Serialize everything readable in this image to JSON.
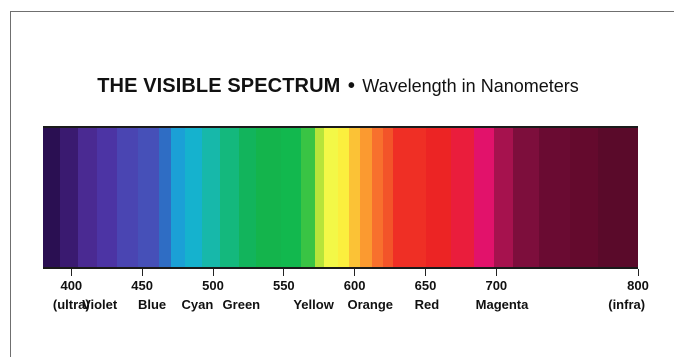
{
  "title": {
    "main": "THE VISIBLE SPECTRUM",
    "separator": "•",
    "subtitle": "Wavelength in Nanometers"
  },
  "scale": {
    "min": 380,
    "max": 800,
    "ticks": [
      {
        "value": 400,
        "label": "400"
      },
      {
        "value": 450,
        "label": "450"
      },
      {
        "value": 500,
        "label": "500"
      },
      {
        "value": 550,
        "label": "550"
      },
      {
        "value": 600,
        "label": "600"
      },
      {
        "value": 650,
        "label": "650"
      },
      {
        "value": 700,
        "label": "700"
      },
      {
        "value": 800,
        "label": "800"
      }
    ]
  },
  "bands": [
    {
      "from": 380,
      "to": 392,
      "color": "#2a0f52"
    },
    {
      "from": 392,
      "to": 405,
      "color": "#3a1a70"
    },
    {
      "from": 405,
      "to": 418,
      "color": "#4a2a92"
    },
    {
      "from": 418,
      "to": 432,
      "color": "#4c34a4"
    },
    {
      "from": 432,
      "to": 447,
      "color": "#4a45b2"
    },
    {
      "from": 447,
      "to": 462,
      "color": "#4650b8"
    },
    {
      "from": 462,
      "to": 470,
      "color": "#2f6dc4"
    },
    {
      "from": 470,
      "to": 480,
      "color": "#1ba0d6"
    },
    {
      "from": 480,
      "to": 492,
      "color": "#15b2ce"
    },
    {
      "from": 492,
      "to": 505,
      "color": "#17b8aa"
    },
    {
      "from": 505,
      "to": 518,
      "color": "#14b87d"
    },
    {
      "from": 518,
      "to": 530,
      "color": "#12b45c"
    },
    {
      "from": 530,
      "to": 548,
      "color": "#14b44c"
    },
    {
      "from": 548,
      "to": 562,
      "color": "#12b84e"
    },
    {
      "from": 562,
      "to": 572,
      "color": "#39c444"
    },
    {
      "from": 572,
      "to": 578,
      "color": "#b7e43a"
    },
    {
      "from": 578,
      "to": 588,
      "color": "#f3f847"
    },
    {
      "from": 588,
      "to": 596,
      "color": "#fbef3e"
    },
    {
      "from": 596,
      "to": 604,
      "color": "#fbc236"
    },
    {
      "from": 604,
      "to": 612,
      "color": "#fb9a30"
    },
    {
      "from": 612,
      "to": 620,
      "color": "#f8702d"
    },
    {
      "from": 620,
      "to": 627,
      "color": "#f35429"
    },
    {
      "from": 627,
      "to": 650,
      "color": "#ef2f25"
    },
    {
      "from": 650,
      "to": 668,
      "color": "#ec2424"
    },
    {
      "from": 668,
      "to": 684,
      "color": "#ea1d3c"
    },
    {
      "from": 684,
      "to": 698,
      "color": "#e2126b"
    },
    {
      "from": 698,
      "to": 712,
      "color": "#a6124e"
    },
    {
      "from": 712,
      "to": 730,
      "color": "#7d0e3c"
    },
    {
      "from": 730,
      "to": 752,
      "color": "#6a0b32"
    },
    {
      "from": 752,
      "to": 772,
      "color": "#640a2d"
    },
    {
      "from": 772,
      "to": 800,
      "color": "#5a0a2a"
    }
  ],
  "labels": [
    {
      "text": "(ultra)",
      "at": 400
    },
    {
      "text": "Violet",
      "at": 420
    },
    {
      "text": "Blue",
      "at": 457
    },
    {
      "text": "Cyan",
      "at": 489
    },
    {
      "text": "Green",
      "at": 520
    },
    {
      "text": "Yellow",
      "at": 571
    },
    {
      "text": "Orange",
      "at": 611
    },
    {
      "text": "Red",
      "at": 651
    },
    {
      "text": "Magenta",
      "at": 704
    },
    {
      "text": "(infra)",
      "at": 792
    }
  ]
}
